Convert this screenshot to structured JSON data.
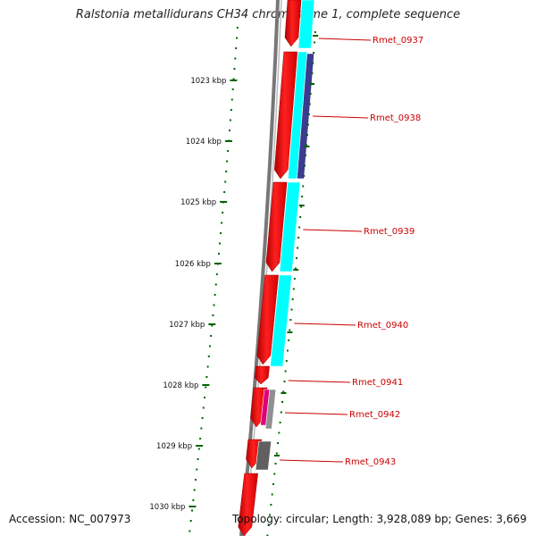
{
  "title": "Ralstonia metallidurans CH34 chromosome 1, complete sequence",
  "accession": "Accession: NC_007973",
  "stats": "Topology: circular; Length: 3,928,089 bp; Genes: 3,669",
  "ticks": [
    "1023 kbp",
    "1024 kbp",
    "1025 kbp",
    "1026 kbp",
    "1027 kbp",
    "1028 kbp",
    "1029 kbp",
    "1030 kbp"
  ],
  "genes": [
    "Rmet_0937",
    "Rmet_0938",
    "Rmet_0939",
    "Rmet_0940",
    "Rmet_0941",
    "Rmet_0942",
    "Rmet_0943"
  ],
  "colors": {
    "backbone": "#808080",
    "cds": "#ff0000",
    "feature_cyan": "#00ffff",
    "feature_navy": "#3b3b8f",
    "feature_magenta": "#e0007a",
    "feature_gray": "#909090",
    "feature_darkgray": "#606060",
    "tick": "#006400",
    "label": "#cc0000"
  }
}
